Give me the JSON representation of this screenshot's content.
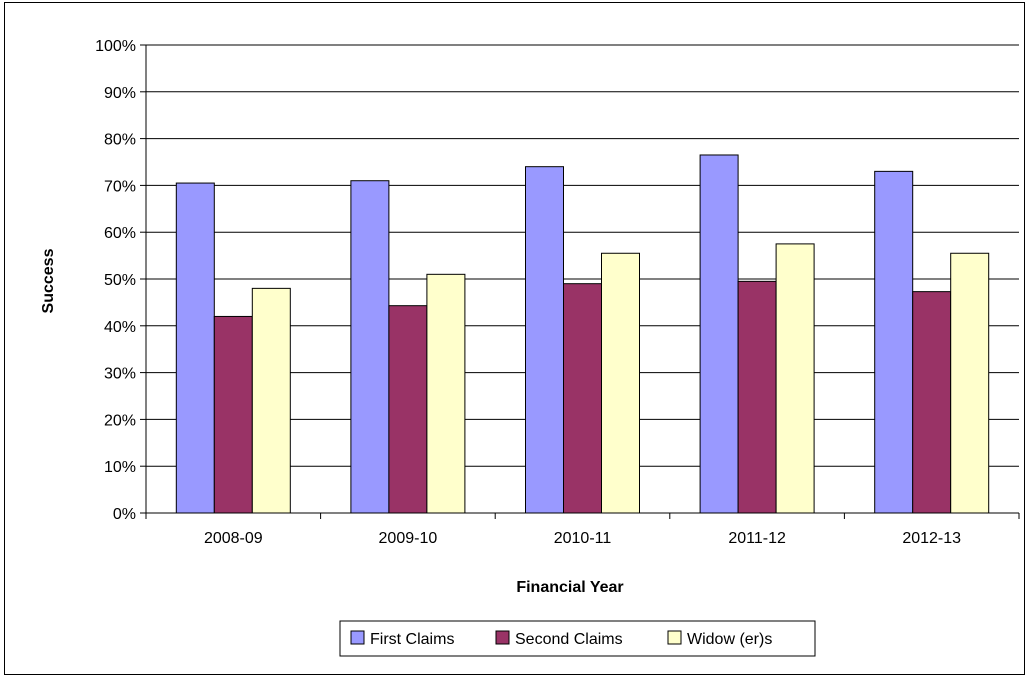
{
  "chart_data": {
    "type": "bar",
    "title": "",
    "xlabel": "Financial Year",
    "ylabel": "Success",
    "ylim": [
      0,
      100
    ],
    "yticks": [
      "0%",
      "10%",
      "20%",
      "30%",
      "40%",
      "50%",
      "60%",
      "70%",
      "80%",
      "90%",
      "100%"
    ],
    "grid": true,
    "legend_position": "bottom",
    "categories": [
      "2008-09",
      "2009-10",
      "2010-11",
      "2011-12",
      "2012-13"
    ],
    "series": [
      {
        "name": "First Claims",
        "color": "#9999ff",
        "values": [
          70.5,
          71,
          74,
          76.5,
          73
        ]
      },
      {
        "name": "Second Claims",
        "color": "#993366",
        "values": [
          42,
          44.3,
          49,
          49.5,
          47.3
        ]
      },
      {
        "name": "Widow (er)s",
        "color": "#ffffcc",
        "values": [
          48,
          51,
          55.5,
          57.5,
          55.5
        ]
      }
    ]
  }
}
